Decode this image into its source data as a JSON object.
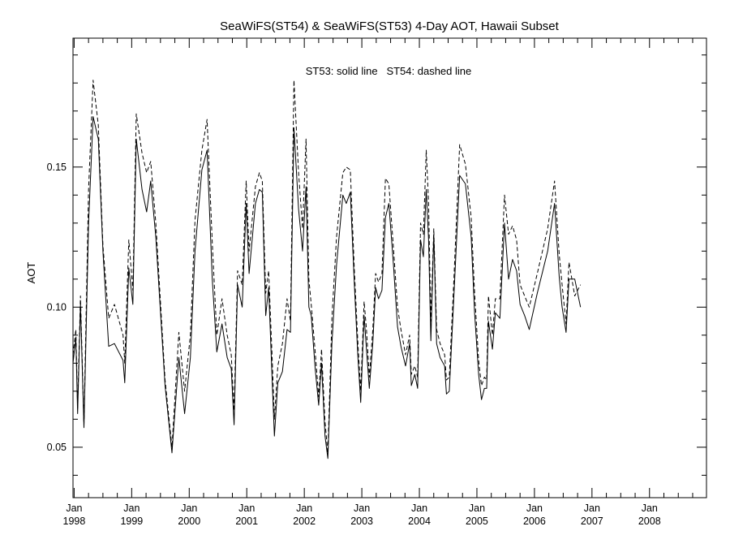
{
  "chart_data": {
    "type": "line",
    "title": "SeaWiFS(ST54) & SeaWiFS(ST53) 4-Day AOT, Hawaii Subset",
    "ylabel": "AOT",
    "xlabel": "",
    "annotation": "ST53: solid line   ST54: dashed line",
    "ylim": [
      0.032,
      0.196
    ],
    "xlim": [
      1997.98,
      2008.99
    ],
    "y_ticks": [
      {
        "value": 0.05,
        "label": "0.05"
      },
      {
        "value": 0.1,
        "label": "0.10"
      },
      {
        "value": 0.15,
        "label": "0.15"
      }
    ],
    "x_ticks": [
      {
        "value": 1998,
        "month": "Jan",
        "year": "1998"
      },
      {
        "value": 1999,
        "month": "Jan",
        "year": "1999"
      },
      {
        "value": 2000,
        "month": "Jan",
        "year": "2000"
      },
      {
        "value": 2001,
        "month": "Jan",
        "year": "2001"
      },
      {
        "value": 2002,
        "month": "Jan",
        "year": "2002"
      },
      {
        "value": 2003,
        "month": "Jan",
        "year": "2003"
      },
      {
        "value": 2004,
        "month": "Jan",
        "year": "2004"
      },
      {
        "value": 2005,
        "month": "Jan",
        "year": "2005"
      },
      {
        "value": 2006,
        "month": "Jan",
        "year": "2006"
      },
      {
        "value": 2007,
        "month": "Jan",
        "year": "2007"
      },
      {
        "value": 2008,
        "month": "Jan",
        "year": "2008"
      }
    ],
    "series": [
      {
        "line": "solid",
        "points": [
          [
            1997.98,
            0.08
          ],
          [
            1998.03,
            0.089
          ],
          [
            1998.06,
            0.062
          ],
          [
            1998.11,
            0.101
          ],
          [
            1998.17,
            0.057
          ],
          [
            1998.25,
            0.13
          ],
          [
            1998.33,
            0.168
          ],
          [
            1998.42,
            0.16
          ],
          [
            1998.5,
            0.12
          ],
          [
            1998.6,
            0.086
          ],
          [
            1998.7,
            0.087
          ],
          [
            1998.85,
            0.081
          ],
          [
            1998.88,
            0.073
          ],
          [
            1998.95,
            0.114
          ],
          [
            1999.02,
            0.101
          ],
          [
            1999.08,
            0.16
          ],
          [
            1999.18,
            0.142
          ],
          [
            1999.26,
            0.134
          ],
          [
            1999.33,
            0.145
          ],
          [
            1999.42,
            0.125
          ],
          [
            1999.58,
            0.072
          ],
          [
            1999.7,
            0.048
          ],
          [
            1999.82,
            0.082
          ],
          [
            1999.92,
            0.062
          ],
          [
            2000.02,
            0.082
          ],
          [
            2000.1,
            0.12
          ],
          [
            2000.22,
            0.149
          ],
          [
            2000.31,
            0.156
          ],
          [
            2000.4,
            0.11
          ],
          [
            2000.48,
            0.084
          ],
          [
            2000.57,
            0.094
          ],
          [
            2000.66,
            0.082
          ],
          [
            2000.73,
            0.078
          ],
          [
            2000.78,
            0.058
          ],
          [
            2000.84,
            0.108
          ],
          [
            2000.92,
            0.1
          ],
          [
            2000.99,
            0.137
          ],
          [
            2001.04,
            0.112
          ],
          [
            2001.15,
            0.137
          ],
          [
            2001.22,
            0.142
          ],
          [
            2001.27,
            0.141
          ],
          [
            2001.33,
            0.097
          ],
          [
            2001.38,
            0.107
          ],
          [
            2001.44,
            0.075
          ],
          [
            2001.48,
            0.054
          ],
          [
            2001.54,
            0.073
          ],
          [
            2001.62,
            0.077
          ],
          [
            2001.7,
            0.092
          ],
          [
            2001.76,
            0.091
          ],
          [
            2001.82,
            0.164
          ],
          [
            2001.9,
            0.135
          ],
          [
            2001.97,
            0.12
          ],
          [
            2002.03,
            0.143
          ],
          [
            2002.08,
            0.1
          ],
          [
            2002.12,
            0.097
          ],
          [
            2002.19,
            0.078
          ],
          [
            2002.25,
            0.065
          ],
          [
            2002.3,
            0.08
          ],
          [
            2002.36,
            0.054
          ],
          [
            2002.41,
            0.046
          ],
          [
            2002.48,
            0.087
          ],
          [
            2002.56,
            0.115
          ],
          [
            2002.67,
            0.14
          ],
          [
            2002.73,
            0.137
          ],
          [
            2002.8,
            0.141
          ],
          [
            2002.87,
            0.108
          ],
          [
            2002.93,
            0.083
          ],
          [
            2002.98,
            0.066
          ],
          [
            2003.04,
            0.097
          ],
          [
            2003.08,
            0.085
          ],
          [
            2003.13,
            0.071
          ],
          [
            2003.19,
            0.087
          ],
          [
            2003.24,
            0.107
          ],
          [
            2003.29,
            0.103
          ],
          [
            2003.35,
            0.106
          ],
          [
            2003.41,
            0.132
          ],
          [
            2003.47,
            0.137
          ],
          [
            2003.55,
            0.115
          ],
          [
            2003.62,
            0.093
          ],
          [
            2003.68,
            0.086
          ],
          [
            2003.76,
            0.079
          ],
          [
            2003.83,
            0.087
          ],
          [
            2003.86,
            0.072
          ],
          [
            2003.92,
            0.076
          ],
          [
            2003.97,
            0.071
          ],
          [
            2004.02,
            0.124
          ],
          [
            2004.07,
            0.118
          ],
          [
            2004.12,
            0.142
          ],
          [
            2004.16,
            0.124
          ],
          [
            2004.2,
            0.088
          ],
          [
            2004.25,
            0.126
          ],
          [
            2004.3,
            0.087
          ],
          [
            2004.36,
            0.082
          ],
          [
            2004.44,
            0.079
          ],
          [
            2004.47,
            0.069
          ],
          [
            2004.52,
            0.07
          ],
          [
            2004.6,
            0.104
          ],
          [
            2004.7,
            0.147
          ],
          [
            2004.8,
            0.144
          ],
          [
            2004.9,
            0.125
          ],
          [
            2004.96,
            0.098
          ],
          [
            2005.03,
            0.076
          ],
          [
            2005.08,
            0.067
          ],
          [
            2005.13,
            0.071
          ],
          [
            2005.17,
            0.071
          ],
          [
            2005.2,
            0.095
          ],
          [
            2005.27,
            0.085
          ],
          [
            2005.32,
            0.098
          ],
          [
            2005.4,
            0.096
          ],
          [
            2005.48,
            0.13
          ],
          [
            2005.55,
            0.11
          ],
          [
            2005.62,
            0.117
          ],
          [
            2005.69,
            0.113
          ],
          [
            2005.75,
            0.101
          ],
          [
            2005.83,
            0.097
          ],
          [
            2005.91,
            0.092
          ],
          [
            2006.05,
            0.105
          ],
          [
            2006.23,
            0.12
          ],
          [
            2006.35,
            0.137
          ],
          [
            2006.43,
            0.111
          ],
          [
            2006.48,
            0.1
          ],
          [
            2006.55,
            0.091
          ],
          [
            2006.6,
            0.11
          ],
          [
            2006.7,
            0.11
          ],
          [
            2006.8,
            0.1
          ]
        ]
      },
      {
        "line": "dashed",
        "points": [
          [
            1997.98,
            0.083
          ],
          [
            1998.03,
            0.092
          ],
          [
            1998.06,
            0.064
          ],
          [
            1998.11,
            0.104
          ],
          [
            1998.17,
            0.058
          ],
          [
            1998.25,
            0.142
          ],
          [
            1998.33,
            0.181
          ],
          [
            1998.42,
            0.165
          ],
          [
            1998.5,
            0.122
          ],
          [
            1998.6,
            0.096
          ],
          [
            1998.7,
            0.101
          ],
          [
            1998.85,
            0.09
          ],
          [
            1998.88,
            0.08
          ],
          [
            1998.95,
            0.124
          ],
          [
            1999.02,
            0.106
          ],
          [
            1999.08,
            0.169
          ],
          [
            1999.18,
            0.155
          ],
          [
            1999.26,
            0.148
          ],
          [
            1999.33,
            0.152
          ],
          [
            1999.42,
            0.13
          ],
          [
            1999.58,
            0.074
          ],
          [
            1999.7,
            0.05
          ],
          [
            1999.82,
            0.091
          ],
          [
            1999.92,
            0.07
          ],
          [
            2000.02,
            0.09
          ],
          [
            2000.1,
            0.131
          ],
          [
            2000.22,
            0.156
          ],
          [
            2000.31,
            0.167
          ],
          [
            2000.4,
            0.123
          ],
          [
            2000.48,
            0.09
          ],
          [
            2000.57,
            0.103
          ],
          [
            2000.66,
            0.09
          ],
          [
            2000.73,
            0.083
          ],
          [
            2000.78,
            0.063
          ],
          [
            2000.84,
            0.113
          ],
          [
            2000.92,
            0.108
          ],
          [
            2000.99,
            0.145
          ],
          [
            2001.04,
            0.12
          ],
          [
            2001.15,
            0.143
          ],
          [
            2001.22,
            0.148
          ],
          [
            2001.27,
            0.145
          ],
          [
            2001.33,
            0.105
          ],
          [
            2001.38,
            0.113
          ],
          [
            2001.44,
            0.083
          ],
          [
            2001.48,
            0.06
          ],
          [
            2001.54,
            0.079
          ],
          [
            2001.62,
            0.087
          ],
          [
            2001.7,
            0.103
          ],
          [
            2001.76,
            0.095
          ],
          [
            2001.82,
            0.181
          ],
          [
            2001.9,
            0.148
          ],
          [
            2001.97,
            0.128
          ],
          [
            2002.03,
            0.16
          ],
          [
            2002.08,
            0.11
          ],
          [
            2002.12,
            0.101
          ],
          [
            2002.19,
            0.084
          ],
          [
            2002.25,
            0.068
          ],
          [
            2002.3,
            0.085
          ],
          [
            2002.36,
            0.059
          ],
          [
            2002.41,
            0.048
          ],
          [
            2002.48,
            0.096
          ],
          [
            2002.56,
            0.125
          ],
          [
            2002.67,
            0.148
          ],
          [
            2002.73,
            0.15
          ],
          [
            2002.8,
            0.149
          ],
          [
            2002.87,
            0.113
          ],
          [
            2002.93,
            0.088
          ],
          [
            2002.98,
            0.07
          ],
          [
            2003.04,
            0.102
          ],
          [
            2003.08,
            0.092
          ],
          [
            2003.13,
            0.075
          ],
          [
            2003.19,
            0.092
          ],
          [
            2003.24,
            0.112
          ],
          [
            2003.29,
            0.109
          ],
          [
            2003.35,
            0.112
          ],
          [
            2003.41,
            0.146
          ],
          [
            2003.47,
            0.144
          ],
          [
            2003.55,
            0.121
          ],
          [
            2003.62,
            0.1
          ],
          [
            2003.68,
            0.092
          ],
          [
            2003.76,
            0.083
          ],
          [
            2003.83,
            0.09
          ],
          [
            2003.86,
            0.076
          ],
          [
            2003.92,
            0.079
          ],
          [
            2003.97,
            0.075
          ],
          [
            2004.02,
            0.13
          ],
          [
            2004.07,
            0.126
          ],
          [
            2004.12,
            0.156
          ],
          [
            2004.16,
            0.137
          ],
          [
            2004.2,
            0.095
          ],
          [
            2004.25,
            0.128
          ],
          [
            2004.3,
            0.092
          ],
          [
            2004.36,
            0.087
          ],
          [
            2004.44,
            0.083
          ],
          [
            2004.47,
            0.074
          ],
          [
            2004.52,
            0.075
          ],
          [
            2004.6,
            0.11
          ],
          [
            2004.7,
            0.158
          ],
          [
            2004.8,
            0.151
          ],
          [
            2004.9,
            0.132
          ],
          [
            2004.96,
            0.105
          ],
          [
            2005.03,
            0.081
          ],
          [
            2005.08,
            0.072
          ],
          [
            2005.13,
            0.075
          ],
          [
            2005.17,
            0.074
          ],
          [
            2005.2,
            0.104
          ],
          [
            2005.27,
            0.09
          ],
          [
            2005.32,
            0.103
          ],
          [
            2005.4,
            0.103
          ],
          [
            2005.48,
            0.14
          ],
          [
            2005.55,
            0.126
          ],
          [
            2005.62,
            0.129
          ],
          [
            2005.69,
            0.124
          ],
          [
            2005.75,
            0.108
          ],
          [
            2005.83,
            0.104
          ],
          [
            2005.91,
            0.1
          ],
          [
            2006.05,
            0.112
          ],
          [
            2006.23,
            0.128
          ],
          [
            2006.35,
            0.145
          ],
          [
            2006.43,
            0.119
          ],
          [
            2006.48,
            0.108
          ],
          [
            2006.55,
            0.094
          ],
          [
            2006.6,
            0.116
          ],
          [
            2006.7,
            0.104
          ],
          [
            2006.8,
            0.108
          ]
        ]
      }
    ]
  }
}
